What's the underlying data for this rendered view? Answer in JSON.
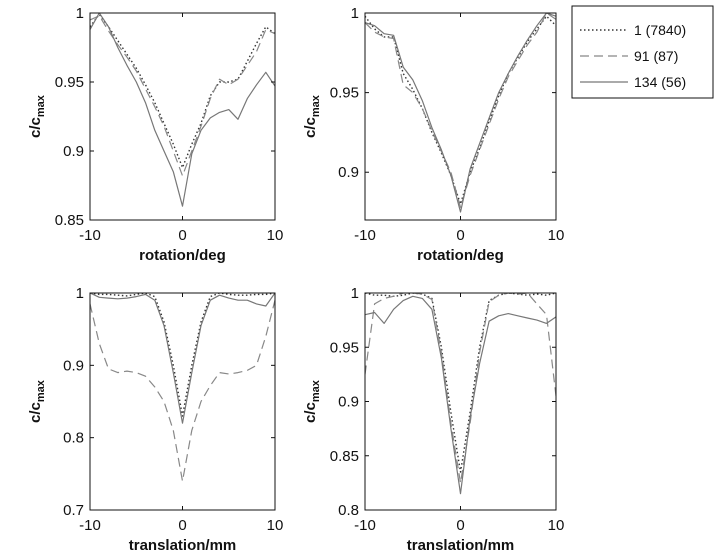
{
  "figure": {
    "legend": {
      "placement": "top-right",
      "entries": [
        {
          "label": "1 (7840)",
          "style": "dotted",
          "color": "#333333"
        },
        {
          "label": "91 (87)",
          "style": "dashed",
          "color": "#888888"
        },
        {
          "label": "134 (56)",
          "style": "solid",
          "color": "#777777"
        }
      ]
    }
  },
  "chart_data": [
    {
      "type": "line",
      "xlabel": "rotation/deg",
      "ylabel": {
        "main": "c/c",
        "sub": "max"
      },
      "xlim": [
        -10,
        10
      ],
      "ylim": [
        0.85,
        1
      ],
      "xticks": [
        -10,
        0,
        10
      ],
      "xtick_labels": [
        "-10",
        "0",
        "10"
      ],
      "yticks": [
        0.85,
        0.9,
        0.95,
        1
      ],
      "ytick_labels": [
        "0.85",
        "0.9",
        "0.95",
        "1"
      ],
      "grid": false,
      "series": [
        {
          "name": "1 (7840)",
          "x": [
            -10,
            -9,
            -8,
            -7,
            -6,
            -5,
            -4,
            -3,
            -2,
            -1,
            0,
            1,
            2,
            3,
            4,
            5,
            6,
            7,
            8,
            9,
            10
          ],
          "y": [
            0.99,
            0.999,
            0.99,
            0.98,
            0.97,
            0.96,
            0.948,
            0.935,
            0.92,
            0.905,
            0.888,
            0.905,
            0.92,
            0.94,
            0.95,
            0.95,
            0.952,
            0.965,
            0.978,
            0.99,
            0.985
          ]
        },
        {
          "name": "91 (87)",
          "x": [
            -10,
            -9,
            -8,
            -7,
            -6,
            -5,
            -4,
            -3,
            -2,
            -1,
            0,
            1,
            2,
            3,
            4,
            5,
            6,
            7,
            8,
            9,
            10
          ],
          "y": [
            0.995,
            0.998,
            0.987,
            0.977,
            0.968,
            0.958,
            0.945,
            0.932,
            0.918,
            0.9,
            0.882,
            0.9,
            0.918,
            0.938,
            0.952,
            0.948,
            0.952,
            0.962,
            0.972,
            0.988,
            0.985
          ]
        },
        {
          "name": "134 (56)",
          "x": [
            -10,
            -9,
            -8,
            -7,
            -6,
            -5,
            -4,
            -3,
            -2,
            -1,
            0,
            1,
            2,
            3,
            4,
            5,
            6,
            7,
            8,
            9,
            10
          ],
          "y": [
            0.988,
            1.0,
            0.99,
            0.975,
            0.962,
            0.95,
            0.935,
            0.915,
            0.9,
            0.885,
            0.86,
            0.898,
            0.915,
            0.924,
            0.928,
            0.93,
            0.923,
            0.938,
            0.948,
            0.957,
            0.947
          ]
        }
      ]
    },
    {
      "type": "line",
      "xlabel": "rotation/deg",
      "ylabel": {
        "main": "c/c",
        "sub": "max"
      },
      "xlim": [
        -10,
        10
      ],
      "ylim": [
        0.87,
        1
      ],
      "xticks": [
        -10,
        0,
        10
      ],
      "xtick_labels": [
        "-10",
        "0",
        "10"
      ],
      "yticks": [
        0.9,
        0.95,
        1
      ],
      "ytick_labels": [
        "0.9",
        "0.95",
        "1"
      ],
      "grid": false,
      "series": [
        {
          "name": "1 (7840)",
          "x": [
            -10,
            -9,
            -8,
            -7,
            -6,
            -5,
            -4,
            -3,
            -2,
            -1,
            0,
            1,
            2,
            3,
            4,
            5,
            6,
            7,
            8,
            9,
            10
          ],
          "y": [
            0.998,
            0.99,
            0.985,
            0.985,
            0.962,
            0.952,
            0.94,
            0.925,
            0.912,
            0.898,
            0.88,
            0.9,
            0.915,
            0.932,
            0.948,
            0.962,
            0.972,
            0.982,
            0.99,
            0.998,
            0.992
          ]
        },
        {
          "name": "91 (87)",
          "x": [
            -10,
            -9,
            -8,
            -7,
            -6,
            -5,
            -4,
            -3,
            -2,
            -1,
            0,
            1,
            2,
            3,
            4,
            5,
            6,
            7,
            8,
            9,
            10
          ],
          "y": [
            0.994,
            0.988,
            0.985,
            0.984,
            0.955,
            0.95,
            0.94,
            0.926,
            0.913,
            0.9,
            0.878,
            0.898,
            0.914,
            0.93,
            0.946,
            0.96,
            0.97,
            0.98,
            0.988,
            1.0,
            0.996
          ]
        },
        {
          "name": "134 (56)",
          "x": [
            -10,
            -9,
            -8,
            -7,
            -6,
            -5,
            -4,
            -3,
            -2,
            -1,
            0,
            1,
            2,
            3,
            4,
            5,
            6,
            7,
            8,
            9,
            10
          ],
          "y": [
            0.994,
            0.992,
            0.987,
            0.986,
            0.966,
            0.958,
            0.945,
            0.928,
            0.914,
            0.898,
            0.875,
            0.902,
            0.918,
            0.934,
            0.95,
            0.962,
            0.973,
            0.983,
            0.992,
            1.0,
            0.998
          ]
        }
      ]
    },
    {
      "type": "line",
      "xlabel": "translation/mm",
      "ylabel": {
        "main": "c/c",
        "sub": "max"
      },
      "xlim": [
        -10,
        10
      ],
      "ylim": [
        0.7,
        1
      ],
      "xticks": [
        -10,
        0,
        10
      ],
      "xtick_labels": [
        "-10",
        "0",
        "10"
      ],
      "yticks": [
        0.7,
        0.8,
        0.9,
        1
      ],
      "ytick_labels": [
        "0.7",
        "0.8",
        "0.9",
        "1"
      ],
      "grid": false,
      "series": [
        {
          "name": "1 (7840)",
          "x": [
            -10,
            -9,
            -8,
            -7,
            -6,
            -5,
            -4,
            -3,
            -2,
            -1,
            0,
            1,
            2,
            3,
            4,
            5,
            6,
            7,
            8,
            9,
            10
          ],
          "y": [
            1.0,
            0.998,
            0.998,
            0.997,
            0.996,
            0.998,
            1.0,
            0.995,
            0.96,
            0.9,
            0.83,
            0.9,
            0.96,
            0.995,
            1.0,
            0.998,
            0.997,
            0.997,
            0.998,
            0.998,
            1.0
          ]
        },
        {
          "name": "91 (87)",
          "x": [
            -10,
            -9,
            -8,
            -7,
            -6,
            -5,
            -4,
            -3,
            -2,
            -1,
            0,
            1,
            2,
            3,
            4,
            5,
            6,
            7,
            8,
            9,
            10
          ],
          "y": [
            0.985,
            0.93,
            0.895,
            0.89,
            0.892,
            0.89,
            0.885,
            0.87,
            0.85,
            0.81,
            0.74,
            0.81,
            0.85,
            0.872,
            0.89,
            0.888,
            0.89,
            0.893,
            0.9,
            0.94,
            0.99
          ]
        },
        {
          "name": "134 (56)",
          "x": [
            -10,
            -9,
            -8,
            -7,
            -6,
            -5,
            -4,
            -3,
            -2,
            -1,
            0,
            1,
            2,
            3,
            4,
            5,
            6,
            7,
            8,
            9,
            10
          ],
          "y": [
            1.0,
            0.994,
            0.993,
            0.992,
            0.993,
            0.995,
            0.998,
            0.99,
            0.955,
            0.89,
            0.82,
            0.89,
            0.955,
            0.99,
            0.997,
            0.993,
            0.99,
            0.99,
            0.985,
            0.982,
            1.0
          ]
        }
      ]
    },
    {
      "type": "line",
      "xlabel": "translation/mm",
      "ylabel": {
        "main": "c/c",
        "sub": "max"
      },
      "xlim": [
        -10,
        10
      ],
      "ylim": [
        0.8,
        1
      ],
      "xticks": [
        -10,
        0,
        10
      ],
      "xtick_labels": [
        "-10",
        "0",
        "10"
      ],
      "yticks": [
        0.8,
        0.85,
        0.9,
        0.95,
        1
      ],
      "ytick_labels": [
        "0.8",
        "0.85",
        "0.9",
        "0.95",
        "1"
      ],
      "grid": false,
      "series": [
        {
          "name": "1 (7840)",
          "x": [
            -10,
            -9,
            -8,
            -7,
            -6,
            -5,
            -4,
            -3,
            -2,
            -1,
            0,
            1,
            2,
            3,
            4,
            5,
            6,
            7,
            8,
            9,
            10
          ],
          "y": [
            1.0,
            0.998,
            0.998,
            0.997,
            0.998,
            1.0,
            0.999,
            0.995,
            0.95,
            0.89,
            0.835,
            0.89,
            0.95,
            0.993,
            0.998,
            1.0,
            0.999,
            0.998,
            0.999,
            0.998,
            1.0
          ]
        },
        {
          "name": "91 (87)",
          "x": [
            -10,
            -9,
            -8,
            -7,
            -6,
            -5,
            -4,
            -3,
            -2,
            -1,
            0,
            1,
            2,
            3,
            4,
            5,
            6,
            7,
            8,
            9,
            10
          ],
          "y": [
            0.925,
            0.99,
            0.995,
            0.997,
            1.0,
            1.0,
            0.999,
            0.994,
            0.945,
            0.88,
            0.825,
            0.88,
            0.945,
            0.992,
            0.998,
            1.0,
            0.999,
            1.0,
            0.99,
            0.98,
            0.905
          ]
        },
        {
          "name": "134 (56)",
          "x": [
            -10,
            -9,
            -8,
            -7,
            -6,
            -5,
            -4,
            -3,
            -2,
            -1,
            0,
            1,
            2,
            3,
            4,
            5,
            6,
            7,
            8,
            9,
            10
          ],
          "y": [
            0.98,
            0.982,
            0.972,
            0.985,
            0.993,
            0.997,
            0.995,
            0.985,
            0.94,
            0.875,
            0.815,
            0.885,
            0.935,
            0.974,
            0.979,
            0.981,
            0.979,
            0.977,
            0.975,
            0.972,
            0.978
          ]
        }
      ]
    }
  ]
}
